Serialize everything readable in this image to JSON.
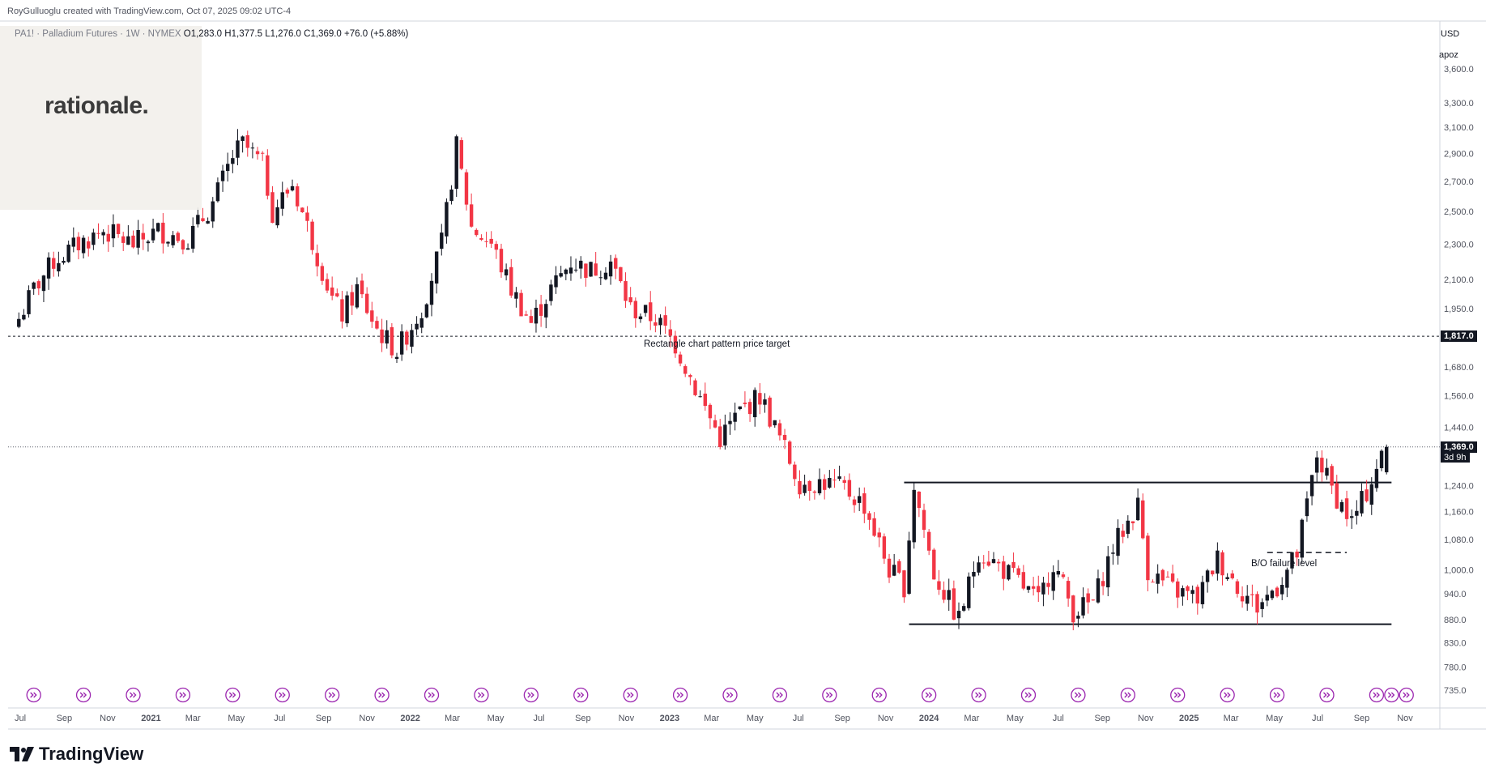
{
  "header": {
    "attribution": "RoyGulluoglu created with TradingView.com, Oct 07, 2025 09:02 UTC-4"
  },
  "legend": {
    "symbol": "PA1! · Palladium Futures · 1W · NYMEX",
    "open": "O1,283.0",
    "high": "H1,377.5",
    "low": "L1,276.0",
    "close": "C1,369.0",
    "change": "+76.0 (+5.88%)"
  },
  "watermark": {
    "text": "rationale."
  },
  "axis": {
    "currency": "USD",
    "scale_mode": "apoz"
  },
  "annotations": {
    "target_label": "Rectangle chart pattern price target",
    "bo_label": "B/O failure level",
    "target_price": "1,817.0",
    "last_price": "1,369.0",
    "countdown": "3d 9h"
  },
  "footer": {
    "brand": "TradingView"
  },
  "colors": {
    "up": "#131722",
    "down": "#f23645",
    "grid_text": "#50535e",
    "event_icon": "#9c27b0"
  },
  "chart_data": {
    "type": "candlestick",
    "title": "Palladium Futures (PA1!) weekly",
    "scale": "log",
    "y_ticks": [
      735,
      780,
      830,
      880,
      940,
      1000,
      1080,
      1160,
      1240,
      1440,
      1560,
      1680,
      1950,
      2100,
      2300,
      2500,
      2700,
      2900,
      3100,
      3300,
      3600
    ],
    "y_tick_labels": [
      "735.0",
      "780.0",
      "830.0",
      "880.0",
      "940.0",
      "1,000.0",
      "1,080.0",
      "1,160.0",
      "1,240.0",
      "1,440.0",
      "1,560.0",
      "1,680.0",
      "1,950.0",
      "2,100.0",
      "2,300.0",
      "2,500.0",
      "2,700.0",
      "2,900.0",
      "3,100.0",
      "3,300.0",
      "3,600.0"
    ],
    "x_ticks": [
      {
        "date": "2020-07-01",
        "label": "Jul"
      },
      {
        "date": "2020-09-01",
        "label": "Sep"
      },
      {
        "date": "2020-11-01",
        "label": "Nov"
      },
      {
        "date": "2021-01-01",
        "label": "2021"
      },
      {
        "date": "2021-03-01",
        "label": "Mar"
      },
      {
        "date": "2021-05-01",
        "label": "May"
      },
      {
        "date": "2021-07-01",
        "label": "Jul"
      },
      {
        "date": "2021-09-01",
        "label": "Sep"
      },
      {
        "date": "2021-11-01",
        "label": "Nov"
      },
      {
        "date": "2022-01-01",
        "label": "2022"
      },
      {
        "date": "2022-03-01",
        "label": "Mar"
      },
      {
        "date": "2022-05-01",
        "label": "May"
      },
      {
        "date": "2022-07-01",
        "label": "Jul"
      },
      {
        "date": "2022-09-01",
        "label": "Sep"
      },
      {
        "date": "2022-11-01",
        "label": "Nov"
      },
      {
        "date": "2023-01-01",
        "label": "2023"
      },
      {
        "date": "2023-03-01",
        "label": "Mar"
      },
      {
        "date": "2023-05-01",
        "label": "May"
      },
      {
        "date": "2023-07-01",
        "label": "Jul"
      },
      {
        "date": "2023-09-01",
        "label": "Sep"
      },
      {
        "date": "2023-11-01",
        "label": "Nov"
      },
      {
        "date": "2024-01-01",
        "label": "2024"
      },
      {
        "date": "2024-03-01",
        "label": "Mar"
      },
      {
        "date": "2024-05-01",
        "label": "May"
      },
      {
        "date": "2024-07-01",
        "label": "Jul"
      },
      {
        "date": "2024-09-01",
        "label": "Sep"
      },
      {
        "date": "2024-11-01",
        "label": "Nov"
      },
      {
        "date": "2025-01-01",
        "label": "2025"
      },
      {
        "date": "2025-03-01",
        "label": "Mar"
      },
      {
        "date": "2025-05-01",
        "label": "May"
      },
      {
        "date": "2025-07-01",
        "label": "Jul"
      },
      {
        "date": "2025-09-01",
        "label": "Sep"
      },
      {
        "date": "2025-11-01",
        "label": "Nov"
      }
    ],
    "close_path": [
      {
        "date": "2020-06-29",
        "close": 1900
      },
      {
        "date": "2020-07-20",
        "close": 2050
      },
      {
        "date": "2020-08-17",
        "close": 2200
      },
      {
        "date": "2020-09-21",
        "close": 2300
      },
      {
        "date": "2020-10-26",
        "close": 2380
      },
      {
        "date": "2020-12-07",
        "close": 2300
      },
      {
        "date": "2021-01-11",
        "close": 2380
      },
      {
        "date": "2021-02-22",
        "close": 2330
      },
      {
        "date": "2021-03-29",
        "close": 2550
      },
      {
        "date": "2021-04-26",
        "close": 2880
      },
      {
        "date": "2021-05-10",
        "close": 2970
      },
      {
        "date": "2021-06-07",
        "close": 2820
      },
      {
        "date": "2021-06-21",
        "close": 2500
      },
      {
        "date": "2021-07-19",
        "close": 2680
      },
      {
        "date": "2021-08-16",
        "close": 2320
      },
      {
        "date": "2021-09-13",
        "close": 2000
      },
      {
        "date": "2021-09-27",
        "close": 1920
      },
      {
        "date": "2021-10-18",
        "close": 2050
      },
      {
        "date": "2021-11-15",
        "close": 1850
      },
      {
        "date": "2021-12-13",
        "close": 1750
      },
      {
        "date": "2022-01-17",
        "close": 1950
      },
      {
        "date": "2022-02-14",
        "close": 2300
      },
      {
        "date": "2022-03-07",
        "close": 2950
      },
      {
        "date": "2022-03-28",
        "close": 2400
      },
      {
        "date": "2022-04-25",
        "close": 2300
      },
      {
        "date": "2022-05-23",
        "close": 2050
      },
      {
        "date": "2022-06-20",
        "close": 1880
      },
      {
        "date": "2022-07-18",
        "close": 2050
      },
      {
        "date": "2022-08-15",
        "close": 2200
      },
      {
        "date": "2022-09-12",
        "close": 2150
      },
      {
        "date": "2022-10-10",
        "close": 2200
      },
      {
        "date": "2022-11-07",
        "close": 1950
      },
      {
        "date": "2022-12-12",
        "close": 1900
      },
      {
        "date": "2023-01-09",
        "close": 1780
      },
      {
        "date": "2023-02-13",
        "close": 1550
      },
      {
        "date": "2023-03-13",
        "close": 1400
      },
      {
        "date": "2023-04-10",
        "close": 1500
      },
      {
        "date": "2023-05-08",
        "close": 1560
      },
      {
        "date": "2023-06-05",
        "close": 1400
      },
      {
        "date": "2023-07-03",
        "close": 1250
      },
      {
        "date": "2023-08-07",
        "close": 1250
      },
      {
        "date": "2023-09-04",
        "close": 1230
      },
      {
        "date": "2023-10-02",
        "close": 1180
      },
      {
        "date": "2023-11-06",
        "close": 1000
      },
      {
        "date": "2023-11-27",
        "close": 960
      },
      {
        "date": "2023-12-11",
        "close": 1240
      },
      {
        "date": "2024-01-08",
        "close": 990
      },
      {
        "date": "2024-02-12",
        "close": 880
      },
      {
        "date": "2024-03-11",
        "close": 1050
      },
      {
        "date": "2024-04-08",
        "close": 1010
      },
      {
        "date": "2024-05-06",
        "close": 970
      },
      {
        "date": "2024-06-03",
        "close": 920
      },
      {
        "date": "2024-06-24",
        "close": 1020
      },
      {
        "date": "2024-07-22",
        "close": 900
      },
      {
        "date": "2024-08-19",
        "close": 920
      },
      {
        "date": "2024-09-16",
        "close": 1060
      },
      {
        "date": "2024-10-21",
        "close": 1180
      },
      {
        "date": "2024-11-04",
        "close": 1000
      },
      {
        "date": "2024-12-09",
        "close": 950
      },
      {
        "date": "2025-01-13",
        "close": 930
      },
      {
        "date": "2025-02-10",
        "close": 1030
      },
      {
        "date": "2025-03-10",
        "close": 960
      },
      {
        "date": "2025-04-07",
        "close": 910
      },
      {
        "date": "2025-05-05",
        "close": 960
      },
      {
        "date": "2025-06-02",
        "close": 1040
      },
      {
        "date": "2025-06-30",
        "close": 1340
      },
      {
        "date": "2025-07-21",
        "close": 1230
      },
      {
        "date": "2025-08-18",
        "close": 1130
      },
      {
        "date": "2025-09-08",
        "close": 1220
      },
      {
        "date": "2025-09-22",
        "close": 1300
      },
      {
        "date": "2025-10-06",
        "close": 1369
      }
    ],
    "last_bar": {
      "date": "2025-10-06",
      "open": 1283.0,
      "high": 1377.5,
      "low": 1276.0,
      "close": 1369.0
    },
    "levels": [
      {
        "name": "pattern-target",
        "price": 1817,
        "style": "dashed"
      },
      {
        "name": "rectangle-top",
        "price": 1250,
        "start": "2023-11-27",
        "end": "2025-10-13"
      },
      {
        "name": "rectangle-bottom",
        "price": 870,
        "start": "2023-12-04",
        "end": "2025-10-13"
      },
      {
        "name": "bo-failure",
        "price": 1045,
        "start": "2025-04-21",
        "end": "2025-08-11",
        "style": "dashed"
      },
      {
        "name": "last-price",
        "price": 1369,
        "style": "dotted"
      }
    ],
    "event_dates": [
      "2020-07-20",
      "2020-09-28",
      "2020-12-07",
      "2021-02-15",
      "2021-04-26",
      "2021-07-05",
      "2021-09-13",
      "2021-11-22",
      "2022-01-31",
      "2022-04-11",
      "2022-06-20",
      "2022-08-29",
      "2022-11-07",
      "2023-01-16",
      "2023-03-27",
      "2023-06-05",
      "2023-08-14",
      "2023-10-23",
      "2024-01-01",
      "2024-03-11",
      "2024-05-20",
      "2024-07-29",
      "2024-10-07",
      "2024-12-16",
      "2025-02-24",
      "2025-05-05",
      "2025-07-14",
      "2025-09-22",
      "2025-10-13",
      "2025-11-03"
    ]
  }
}
